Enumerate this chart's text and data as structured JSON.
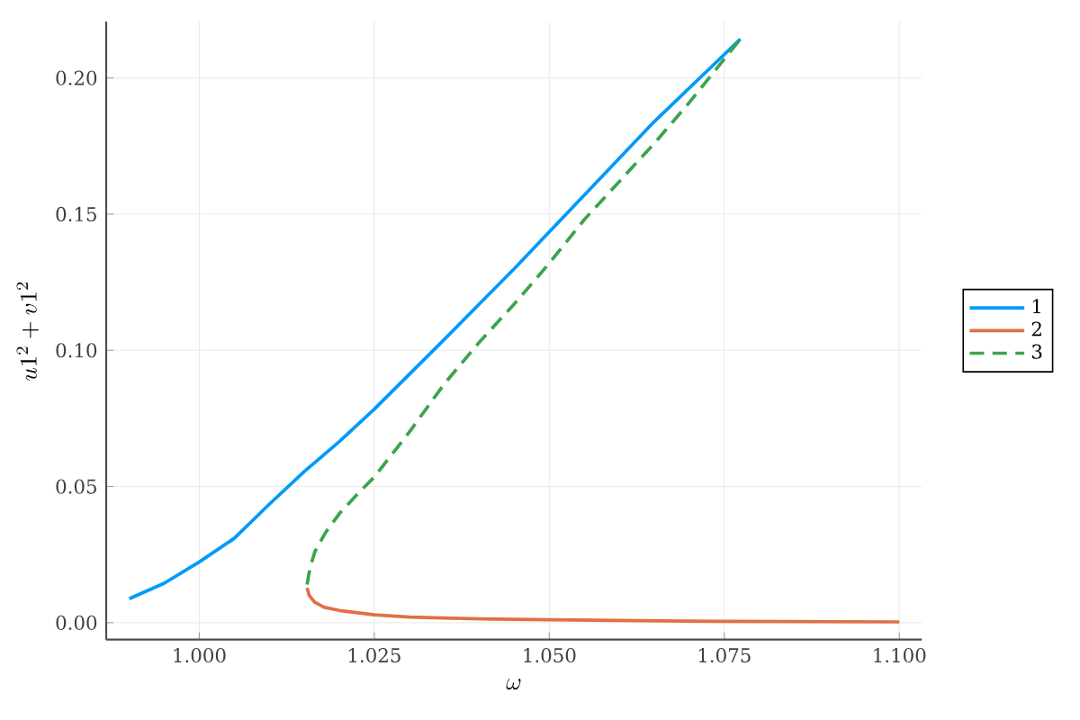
{
  "chart_data": {
    "type": "line",
    "xlabel": "\\omega",
    "ylabel": "u1^2 + v1^2",
    "xlim": [
      0.9867,
      1.1032
    ],
    "ylim": [
      -0.0062,
      0.2207
    ],
    "xticks": [
      {
        "value": 1.0,
        "label": "1.000"
      },
      {
        "value": 1.025,
        "label": "1.025"
      },
      {
        "value": 1.05,
        "label": "1.050"
      },
      {
        "value": 1.075,
        "label": "1.075"
      },
      {
        "value": 1.1,
        "label": "1.100"
      }
    ],
    "yticks": [
      {
        "value": 0.0,
        "label": "0.00"
      },
      {
        "value": 0.05,
        "label": "0.05"
      },
      {
        "value": 0.1,
        "label": "0.10"
      },
      {
        "value": 0.15,
        "label": "0.15"
      },
      {
        "value": 0.2,
        "label": "0.20"
      }
    ],
    "grid": true,
    "legend": "right",
    "series": [
      {
        "name": "1",
        "color": "#009af9",
        "line_style": "solid",
        "x": [
          0.99,
          0.995,
          1.0,
          1.005,
          1.01,
          1.015,
          1.02,
          1.025,
          1.035,
          1.045,
          1.055,
          1.065,
          1.0773
        ],
        "values": [
          0.0088,
          0.0145,
          0.0223,
          0.031,
          0.0435,
          0.0555,
          0.0665,
          0.0784,
          0.104,
          0.13,
          0.157,
          0.184,
          0.2143
        ]
      },
      {
        "name": "2",
        "color": "#e26f46",
        "line_style": "solid",
        "x": [
          1.0154,
          1.0157,
          1.0165,
          1.0178,
          1.02,
          1.025,
          1.03,
          1.04,
          1.05,
          1.06,
          1.075,
          1.1
        ],
        "values": [
          0.0128,
          0.01,
          0.0075,
          0.0057,
          0.0045,
          0.0029,
          0.0021,
          0.0014,
          0.0011,
          0.0008,
          0.0005,
          0.0003
        ]
      },
      {
        "name": "3",
        "color": "#3da44d",
        "line_style": "dashed",
        "x": [
          1.0154,
          1.0158,
          1.0165,
          1.018,
          1.02,
          1.0225,
          1.025,
          1.03,
          1.035,
          1.04,
          1.045,
          1.05,
          1.055,
          1.06,
          1.065,
          1.07,
          1.0773
        ],
        "values": [
          0.014,
          0.02,
          0.026,
          0.033,
          0.04,
          0.047,
          0.0535,
          0.07,
          0.0877,
          0.103,
          0.117,
          0.132,
          0.148,
          0.162,
          0.176,
          0.191,
          0.2143
        ]
      }
    ]
  }
}
